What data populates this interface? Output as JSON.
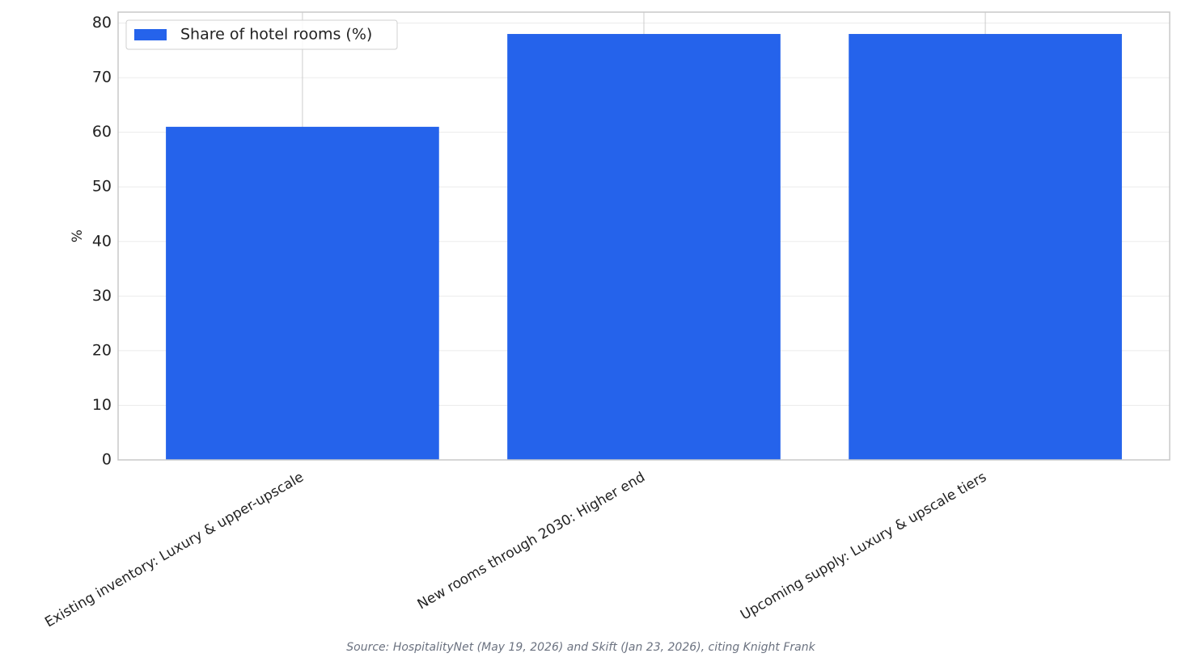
{
  "chart_data": {
    "type": "bar",
    "categories": [
      "Existing inventory: Luxury & upper-upscale",
      "New rooms through 2030: Higher end",
      "Upcoming supply: Luxury & upscale tiers"
    ],
    "series": [
      {
        "name": "Share of hotel rooms (%)",
        "color": "#2563eb",
        "values": [
          61,
          78,
          78
        ]
      }
    ],
    "ylabel": "%",
    "ylim": [
      0,
      82
    ],
    "yticks": [
      0,
      10,
      20,
      30,
      40,
      50,
      60,
      70,
      80
    ],
    "grid": true,
    "legend": "upper left",
    "source": "Source: HospitalityNet (May 19, 2026) and Skift (Jan 23, 2026), citing Knight Frank"
  }
}
